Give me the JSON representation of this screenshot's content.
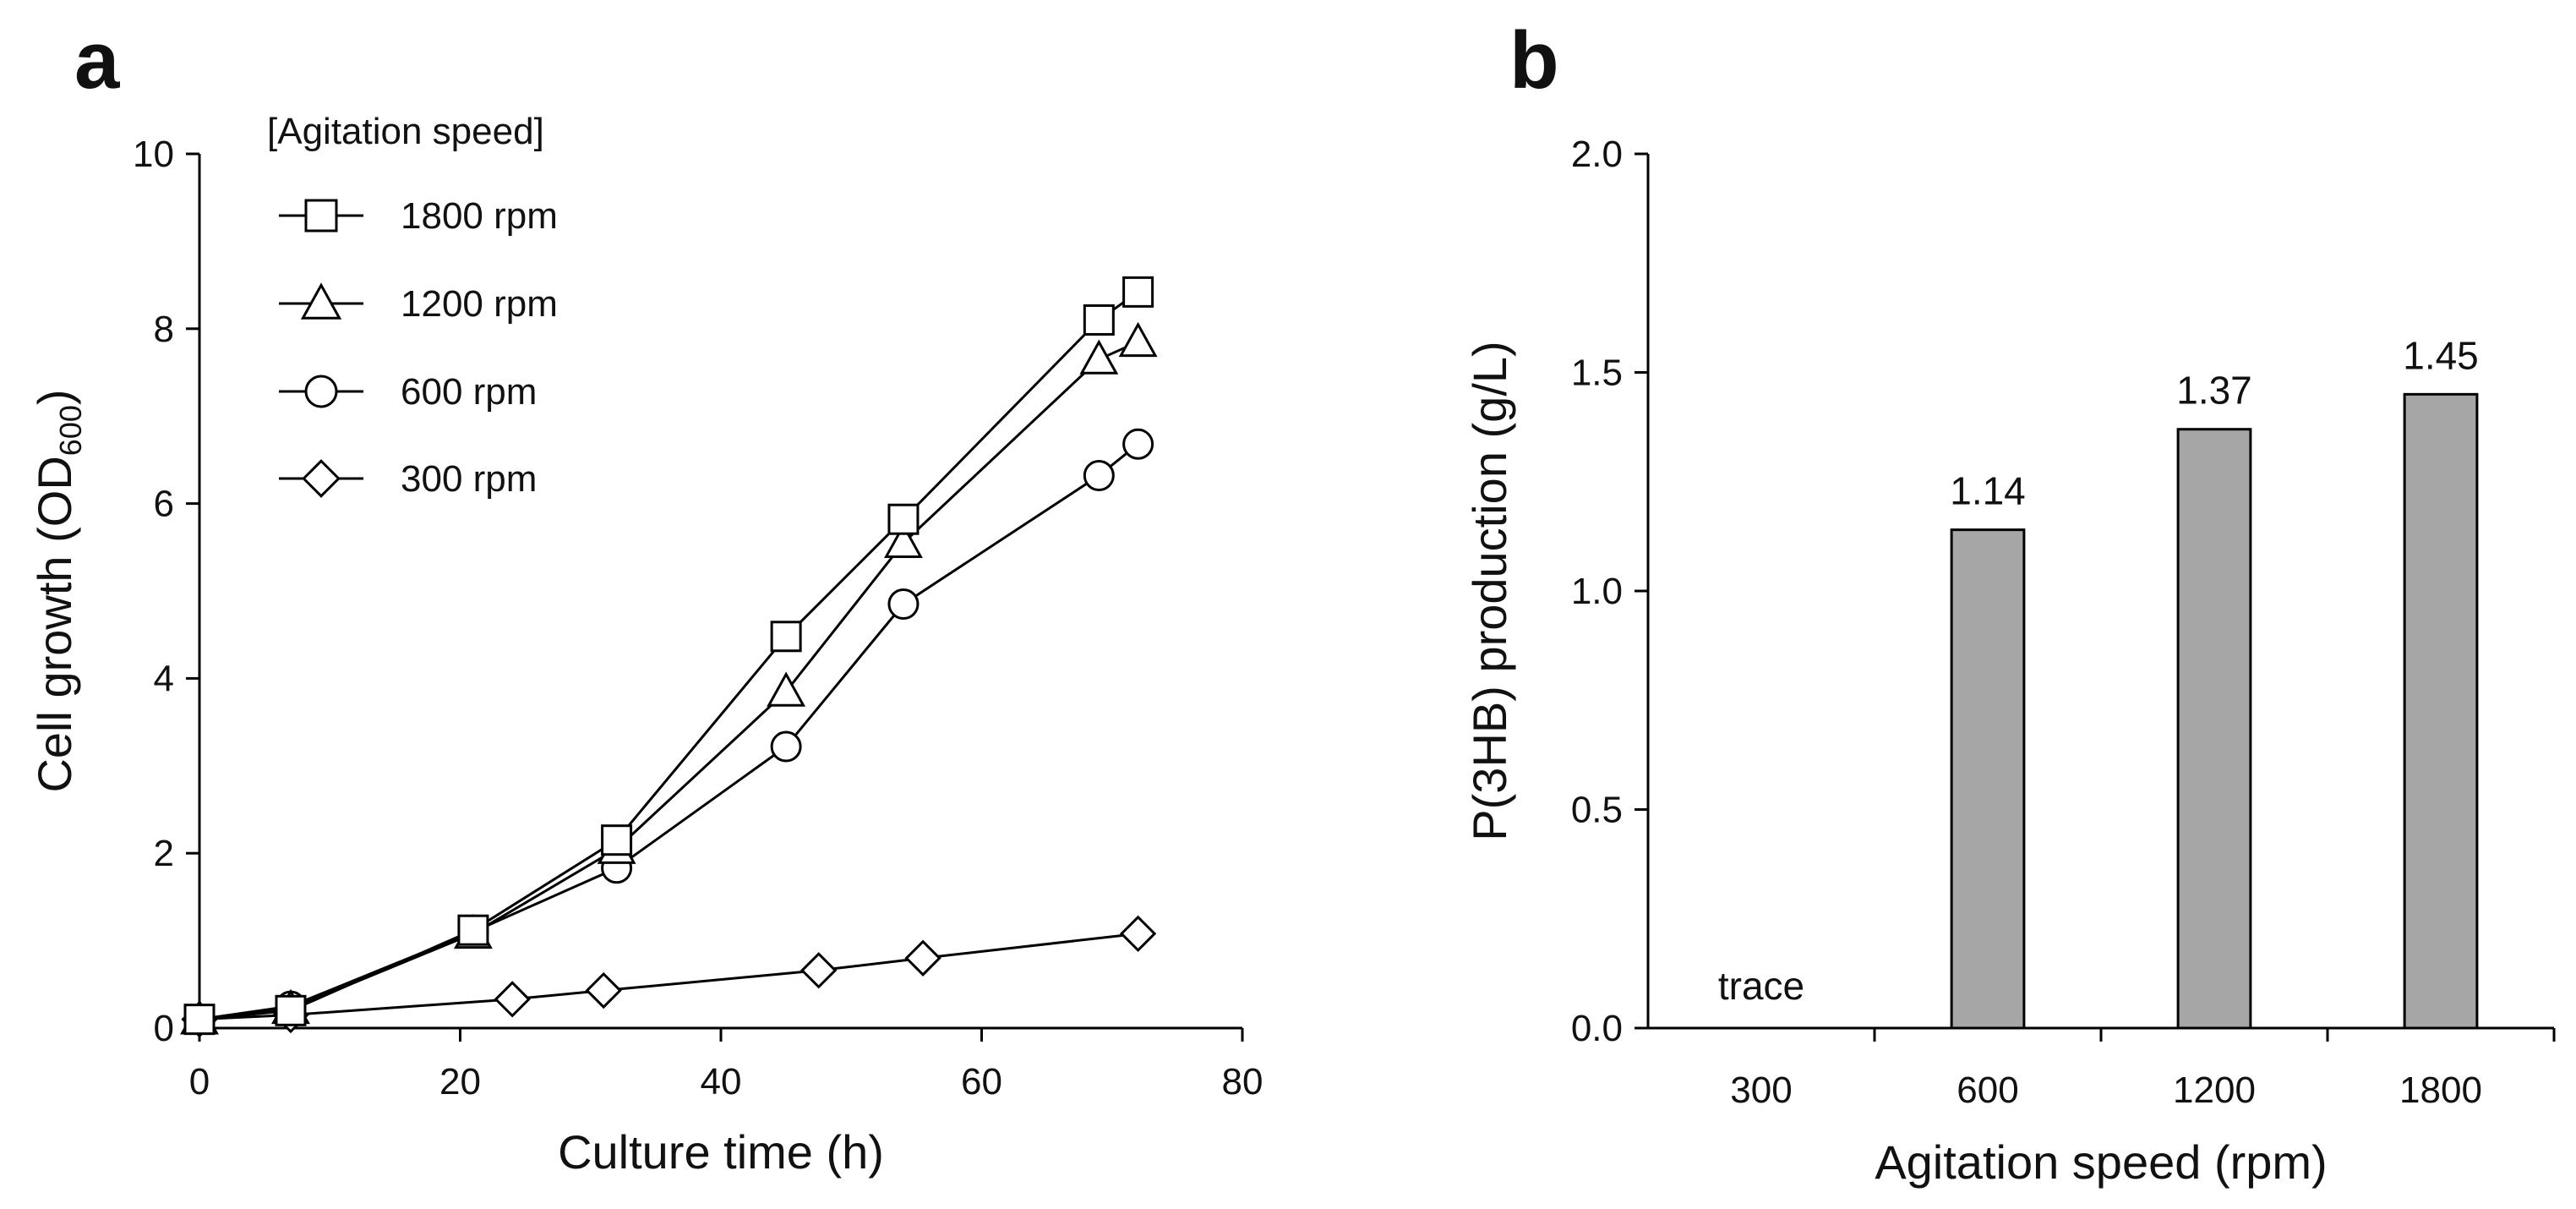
{
  "chart_data": [
    {
      "panel": "a",
      "type": "line",
      "title": "",
      "xlabel": "Culture time (h)",
      "ylabel_main": "Cell growth (OD",
      "ylabel_sub": "600",
      "ylabel_close": ")",
      "xlim": [
        0,
        80
      ],
      "ylim": [
        0,
        10
      ],
      "xticks": [
        0,
        20,
        40,
        60,
        80
      ],
      "yticks": [
        0,
        2,
        4,
        6,
        8,
        10
      ],
      "grid": false,
      "legend_title": "[Agitation speed]",
      "legend_position": "top-left",
      "series": [
        {
          "name": "1800 rpm",
          "marker": "square",
          "x": [
            0,
            7,
            21,
            32,
            45,
            54,
            69,
            72
          ],
          "y": [
            0.1,
            0.2,
            1.12,
            2.15,
            4.48,
            5.82,
            8.1,
            8.42
          ]
        },
        {
          "name": "1200 rpm",
          "marker": "triangle",
          "x": [
            0,
            7,
            21,
            32,
            45,
            54,
            69,
            72
          ],
          "y": [
            0.1,
            0.22,
            1.08,
            2.05,
            3.85,
            5.55,
            7.65,
            7.85
          ]
        },
        {
          "name": "600 rpm",
          "marker": "circle",
          "x": [
            0,
            7,
            21,
            32,
            45,
            54,
            69,
            72
          ],
          "y": [
            0.1,
            0.25,
            1.1,
            1.83,
            3.22,
            4.85,
            6.32,
            6.68
          ]
        },
        {
          "name": "300 rpm",
          "marker": "diamond",
          "x": [
            0,
            7,
            24,
            31,
            47.5,
            55.5,
            72
          ],
          "y": [
            0.1,
            0.15,
            0.33,
            0.43,
            0.66,
            0.8,
            1.08
          ]
        }
      ]
    },
    {
      "panel": "b",
      "type": "bar",
      "title": "",
      "xlabel": "Agitation speed (rpm)",
      "ylabel": "P(3HB) production (g/L)",
      "ylim": [
        0,
        2.0
      ],
      "yticks": [
        "0.0",
        "0.5",
        "1.0",
        "1.5",
        "2.0"
      ],
      "grid": false,
      "bar_color": "#a6a6a6",
      "categories": [
        "300",
        "600",
        "1200",
        "1800"
      ],
      "values": [
        0,
        1.14,
        1.37,
        1.45
      ],
      "labels": [
        "trace",
        "1.14",
        "1.37",
        "1.45"
      ]
    }
  ]
}
